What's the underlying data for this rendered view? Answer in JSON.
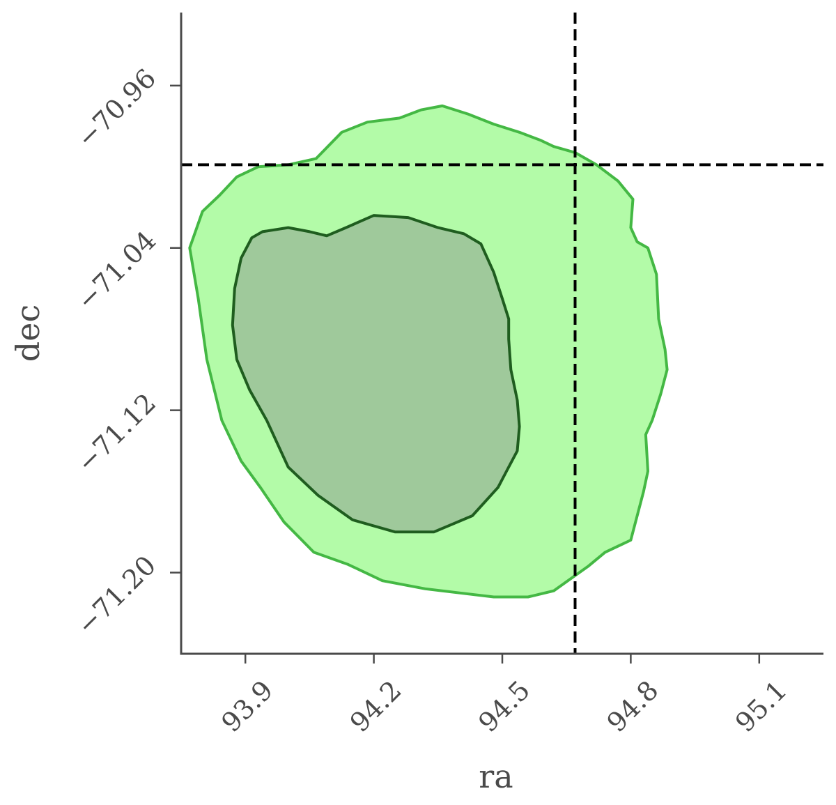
{
  "chart_data": {
    "type": "contour",
    "xlabel": "ra",
    "ylabel": "dec",
    "xlim": [
      93.75,
      95.25
    ],
    "ylim": [
      -71.24,
      -70.924
    ],
    "xticks": [
      93.9,
      94.2,
      94.5,
      94.8,
      95.1
    ],
    "xtick_labels": [
      "93.9",
      "94.2",
      "94.5",
      "94.8",
      "95.1"
    ],
    "yticks": [
      -70.96,
      -71.04,
      -71.12,
      -71.2
    ],
    "ytick_labels": [
      "−70.96",
      "−71.04",
      "−71.12",
      "−71.20"
    ],
    "reference_lines": {
      "x": 94.67,
      "y": -70.999
    },
    "contours": [
      {
        "level": "outer",
        "fill": "#b3fba8",
        "stroke": "#44b844",
        "points": [
          [
            94.065,
            -70.996
          ],
          [
            94.125,
            -70.983
          ],
          [
            94.185,
            -70.978
          ],
          [
            94.26,
            -70.976
          ],
          [
            94.31,
            -70.972
          ],
          [
            94.36,
            -70.97
          ],
          [
            94.42,
            -70.974
          ],
          [
            94.48,
            -70.979
          ],
          [
            94.54,
            -70.983
          ],
          [
            94.59,
            -70.987
          ],
          [
            94.62,
            -70.99
          ],
          [
            94.67,
            -70.993
          ],
          [
            94.72,
            -70.999
          ],
          [
            94.77,
            -71.007
          ],
          [
            94.805,
            -71.016
          ],
          [
            94.8,
            -71.03
          ],
          [
            94.815,
            -71.037
          ],
          [
            94.84,
            -71.04
          ],
          [
            94.86,
            -71.053
          ],
          [
            94.865,
            -71.075
          ],
          [
            94.88,
            -71.09
          ],
          [
            94.885,
            -71.1
          ],
          [
            94.87,
            -71.112
          ],
          [
            94.85,
            -71.125
          ],
          [
            94.835,
            -71.132
          ],
          [
            94.84,
            -71.15
          ],
          [
            94.83,
            -71.16
          ],
          [
            94.8,
            -71.184
          ],
          [
            94.74,
            -71.19
          ],
          [
            94.7,
            -71.197
          ],
          [
            94.66,
            -71.203
          ],
          [
            94.62,
            -71.209
          ],
          [
            94.56,
            -71.212
          ],
          [
            94.48,
            -71.212
          ],
          [
            94.4,
            -71.21
          ],
          [
            94.32,
            -71.208
          ],
          [
            94.22,
            -71.204
          ],
          [
            94.14,
            -71.196
          ],
          [
            94.06,
            -71.19
          ],
          [
            93.99,
            -71.175
          ],
          [
            93.935,
            -71.158
          ],
          [
            93.89,
            -71.145
          ],
          [
            93.845,
            -71.125
          ],
          [
            93.81,
            -71.095
          ],
          [
            93.79,
            -71.065
          ],
          [
            93.77,
            -71.04
          ],
          [
            93.8,
            -71.022
          ],
          [
            93.84,
            -71.014
          ],
          [
            93.88,
            -71.005
          ],
          [
            93.93,
            -71.0
          ],
          [
            94.0,
            -70.999
          ]
        ]
      },
      {
        "level": "inner",
        "fill": "#9fc99b",
        "stroke": "#1f5d1f",
        "points": [
          [
            94.09,
            -71.034
          ],
          [
            94.135,
            -71.03
          ],
          [
            94.2,
            -71.024
          ],
          [
            94.28,
            -71.025
          ],
          [
            94.35,
            -71.03
          ],
          [
            94.41,
            -71.033
          ],
          [
            94.45,
            -71.038
          ],
          [
            94.48,
            -71.052
          ],
          [
            94.5,
            -71.065
          ],
          [
            94.515,
            -71.075
          ],
          [
            94.515,
            -71.085
          ],
          [
            94.52,
            -71.1
          ],
          [
            94.535,
            -71.115
          ],
          [
            94.54,
            -71.128
          ],
          [
            94.535,
            -71.14
          ],
          [
            94.51,
            -71.15
          ],
          [
            94.49,
            -71.158
          ],
          [
            94.43,
            -71.172
          ],
          [
            94.34,
            -71.18
          ],
          [
            94.25,
            -71.18
          ],
          [
            94.15,
            -71.174
          ],
          [
            94.07,
            -71.162
          ],
          [
            94.0,
            -71.148
          ],
          [
            93.95,
            -71.125
          ],
          [
            93.91,
            -71.11
          ],
          [
            93.88,
            -71.095
          ],
          [
            93.87,
            -71.078
          ],
          [
            93.875,
            -71.06
          ],
          [
            93.89,
            -71.045
          ],
          [
            93.915,
            -71.035
          ],
          [
            93.94,
            -71.032
          ],
          [
            94.0,
            -71.03
          ],
          [
            94.05,
            -71.032
          ]
        ]
      }
    ]
  }
}
